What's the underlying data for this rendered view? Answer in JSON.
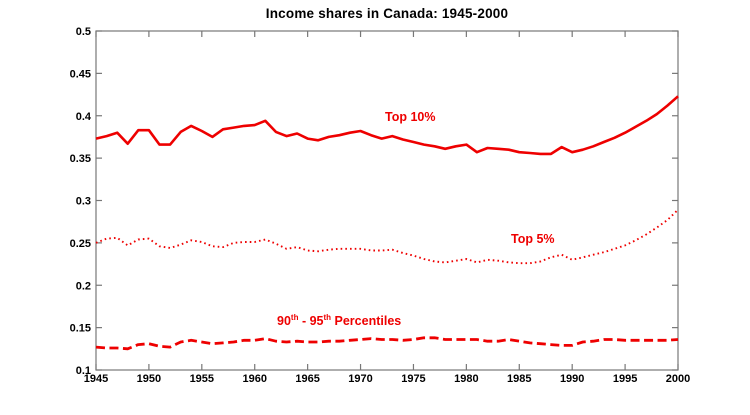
{
  "title": "Income shares in Canada: 1945-2000",
  "series_labels": {
    "top10": "Top 10%",
    "top5": "Top 5%",
    "p9095_pre": "90",
    "p9095_sup1": "th",
    "p9095_mid": " - 95",
    "p9095_sup2": "th",
    "p9095_post": " Percentiles"
  },
  "colors": {
    "series_red": "#ee0000",
    "axis_gray": "#777777",
    "tick_label_black": "#000000"
  },
  "chart_data": {
    "type": "line",
    "title": "Income shares in Canada: 1945-2000",
    "xlabel": "",
    "ylabel": "",
    "xlim": [
      1945,
      2000
    ],
    "ylim": [
      0.1,
      0.5
    ],
    "grid": false,
    "legend": "inline-labels",
    "x_ticks": [
      1945,
      1950,
      1955,
      1960,
      1965,
      1970,
      1975,
      1980,
      1985,
      1990,
      1995,
      2000
    ],
    "x_tick_labels": [
      "1945",
      "1950",
      "1955",
      "1960",
      "1965",
      "1970",
      "1975",
      "1980",
      "1985",
      "1990",
      "1995",
      "2000"
    ],
    "y_ticks": [
      0.1,
      0.15,
      0.2,
      0.25,
      0.3,
      0.35,
      0.4,
      0.45,
      0.5
    ],
    "y_tick_labels": [
      "0.1",
      "0.15",
      "0.2",
      "0.25",
      "0.3",
      "0.35",
      "0.4",
      "0.45",
      "0.5"
    ],
    "years": [
      1945,
      1946,
      1947,
      1948,
      1949,
      1950,
      1951,
      1952,
      1953,
      1954,
      1955,
      1956,
      1957,
      1958,
      1959,
      1960,
      1961,
      1962,
      1963,
      1964,
      1965,
      1966,
      1967,
      1968,
      1969,
      1970,
      1971,
      1972,
      1973,
      1974,
      1975,
      1976,
      1977,
      1978,
      1979,
      1980,
      1981,
      1982,
      1983,
      1984,
      1985,
      1986,
      1987,
      1988,
      1989,
      1990,
      1991,
      1992,
      1993,
      1994,
      1995,
      1996,
      1997,
      1998,
      1999,
      2000
    ],
    "series": [
      {
        "name": "Top 10%",
        "style": "solid",
        "values": [
          0.373,
          0.376,
          0.38,
          0.367,
          0.383,
          0.383,
          0.366,
          0.366,
          0.381,
          0.388,
          0.382,
          0.375,
          0.384,
          0.386,
          0.388,
          0.389,
          0.394,
          0.381,
          0.376,
          0.379,
          0.373,
          0.371,
          0.375,
          0.377,
          0.38,
          0.382,
          0.377,
          0.373,
          0.376,
          0.372,
          0.369,
          0.366,
          0.364,
          0.361,
          0.364,
          0.366,
          0.357,
          0.362,
          0.361,
          0.36,
          0.357,
          0.356,
          0.355,
          0.355,
          0.363,
          0.357,
          0.36,
          0.364,
          0.369,
          0.374,
          0.38,
          0.387,
          0.394,
          0.402,
          0.412,
          0.423
        ]
      },
      {
        "name": "Top 5%",
        "style": "dotted",
        "values": [
          0.25,
          0.255,
          0.256,
          0.247,
          0.254,
          0.255,
          0.246,
          0.244,
          0.248,
          0.253,
          0.251,
          0.246,
          0.245,
          0.25,
          0.251,
          0.251,
          0.254,
          0.249,
          0.243,
          0.245,
          0.241,
          0.24,
          0.242,
          0.243,
          0.243,
          0.243,
          0.241,
          0.241,
          0.242,
          0.238,
          0.235,
          0.231,
          0.228,
          0.227,
          0.229,
          0.231,
          0.227,
          0.23,
          0.229,
          0.227,
          0.226,
          0.226,
          0.228,
          0.233,
          0.236,
          0.23,
          0.233,
          0.236,
          0.239,
          0.243,
          0.247,
          0.253,
          0.26,
          0.268,
          0.277,
          0.289
        ]
      },
      {
        "name": "90th - 95th Percentiles",
        "style": "dashed",
        "values": [
          0.127,
          0.126,
          0.126,
          0.125,
          0.13,
          0.131,
          0.128,
          0.127,
          0.133,
          0.135,
          0.133,
          0.131,
          0.132,
          0.133,
          0.135,
          0.135,
          0.137,
          0.134,
          0.133,
          0.134,
          0.133,
          0.133,
          0.134,
          0.134,
          0.135,
          0.136,
          0.137,
          0.136,
          0.136,
          0.135,
          0.136,
          0.138,
          0.138,
          0.136,
          0.136,
          0.136,
          0.136,
          0.134,
          0.134,
          0.136,
          0.134,
          0.132,
          0.131,
          0.13,
          0.129,
          0.129,
          0.133,
          0.134,
          0.136,
          0.136,
          0.135,
          0.135,
          0.135,
          0.135,
          0.135,
          0.136
        ]
      }
    ]
  }
}
